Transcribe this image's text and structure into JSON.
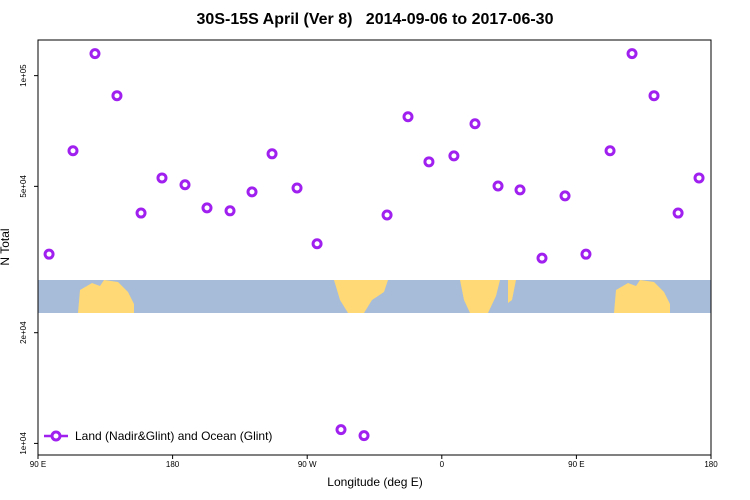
{
  "chart_data": {
    "type": "scatter",
    "title": "30S-15S April (Ver 8)   2014-09-06 to 2017-06-30",
    "x_label": "Longitude (deg E)",
    "y_label": "N Total",
    "log_y": true,
    "legend_position": "bottom-left",
    "series": [
      {
        "name": "Land (Nadir&Glint) and Ocean (Glint)",
        "color": "#a020f0",
        "x": [
          97.4,
          113.4,
          128.1,
          142.8,
          158.9,
          172.9,
          188.3,
          203,
          218.4,
          233.1,
          246.5,
          263.2,
          276.6,
          292.6,
          308,
          323.4,
          337.4,
          351.4,
          368.1,
          382.2,
          397.6,
          412.3,
          427,
          442.4,
          456.4,
          472.5,
          487.2,
          501.9,
          518,
          532
        ],
        "values": [
          32700,
          62500,
          114800,
          88200,
          42300,
          52700,
          50500,
          43700,
          42900,
          48300,
          61300,
          49500,
          34900,
          10900,
          10500,
          41800,
          77300,
          58300,
          60500,
          74000,
          50100,
          48900,
          31900,
          47100,
          32700,
          62500,
          114800,
          88200,
          42300,
          52700
        ]
      }
    ],
    "xlim": [
      90,
      540
    ],
    "xticks": [
      {
        "value": 90,
        "label": "90 E"
      },
      180,
      {
        "value": 270,
        "label": "90 W"
      },
      {
        "value": 360,
        "label": "0"
      },
      {
        "value": 450,
        "label": "90 E"
      },
      {
        "value": 540,
        "label": "180"
      }
    ],
    "ylim": [
      9300,
      125000
    ],
    "yticks": [
      {
        "value": 10000,
        "label": "1e+04"
      },
      {
        "value": 20000,
        "label": "2e+04"
      },
      {
        "value": 50000,
        "label": "5e+04"
      },
      {
        "value": 100000,
        "label": "1e+05"
      }
    ]
  }
}
